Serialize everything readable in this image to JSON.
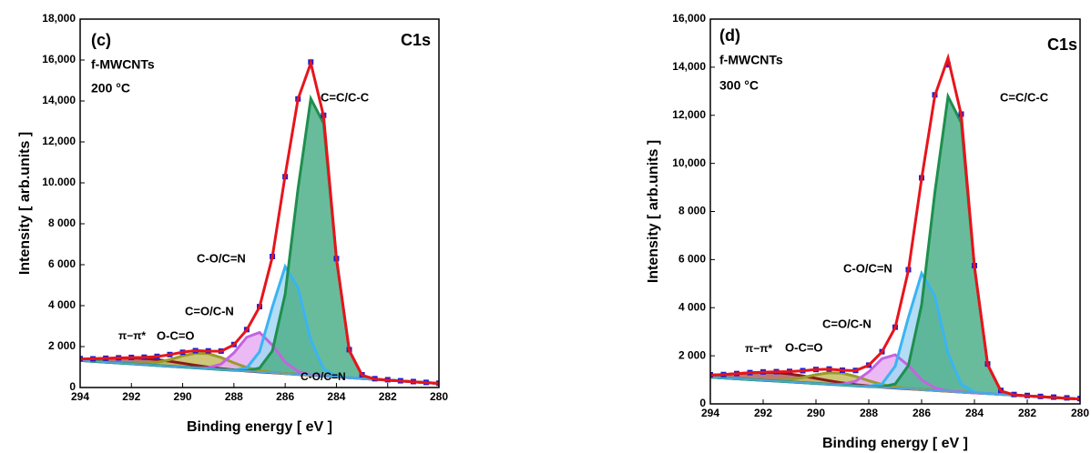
{
  "chart_data": [
    {
      "type": "line",
      "xlabel": "Binding energy [ eV ]",
      "ylabel": "Intensity [ arb.units ]",
      "xlim": [
        294,
        280
      ],
      "xticks": [
        294,
        292,
        290,
        288,
        286,
        284,
        282,
        280
      ],
      "ylim": [
        0,
        18000
      ],
      "yticks": [
        0,
        {
          "value": 2000,
          "label": "2 000"
        },
        {
          "value": 4000,
          "label": "4 000"
        },
        {
          "value": 6000,
          "label": "6 000"
        },
        {
          "value": 8000,
          "label": "8 000"
        },
        {
          "value": 10000,
          "label": "10.000"
        },
        {
          "value": 12000,
          "label": "12,000"
        },
        {
          "value": 14000,
          "label": "14,000"
        },
        {
          "value": 16000,
          "label": "16,000"
        },
        {
          "value": 18000,
          "label": "18,000"
        }
      ],
      "x": [
        294,
        293.5,
        293,
        292.5,
        292,
        291.5,
        291,
        290.5,
        290,
        289.5,
        289,
        288.5,
        288,
        287.5,
        287,
        286.5,
        286,
        285.5,
        285,
        284.5,
        284,
        283.5,
        283,
        282.5,
        282,
        281.5,
        281,
        280.5,
        280
      ],
      "series": [
        {
          "name": "C=C/C-C",
          "color": "#1e8f4e",
          "fill": "#4fb08a",
          "values": [
            1320,
            1280,
            1240,
            1200,
            1160,
            1120,
            1080,
            1040,
            1000,
            960,
            920,
            880,
            840,
            820,
            950,
            1790,
            4570,
            9700,
            14110,
            12910,
            6280,
            1810,
            595,
            410,
            360,
            320,
            280,
            240,
            200
          ]
        },
        {
          "name": "C-O/C=N",
          "color": "#3ab4f2",
          "fill": "#a6d6f4",
          "values": [
            1320,
            1280,
            1240,
            1200,
            1160,
            1120,
            1080,
            1040,
            1000,
            960,
            920,
            880,
            852,
            951,
            1747,
            3935,
            5907,
            4885,
            2320,
            908,
            556,
            481,
            440,
            400,
            360,
            320,
            280,
            240,
            200
          ]
        },
        {
          "name": "C=O/C-N",
          "color": "#c463e2",
          "fill": "#e7aef2",
          "values": [
            1320,
            1280,
            1240,
            1200,
            1160,
            1120,
            1080,
            1040,
            1000,
            965,
            969,
            1144,
            1693,
            2457,
            2690,
            2071,
            1248,
            783,
            621,
            560,
            520,
            480,
            440,
            400,
            360,
            320,
            280,
            240,
            200
          ]
        },
        {
          "name": "O-C=O",
          "color": "#9a9a2c",
          "fill": "#c4bd62",
          "values": [
            1320,
            1280,
            1240,
            1203,
            1175,
            1173,
            1228,
            1362,
            1545,
            1677,
            1655,
            1467,
            1205,
            977,
            827,
            740,
            684,
            640,
            600,
            560,
            520,
            480,
            440,
            400,
            360,
            320,
            280,
            240,
            200
          ]
        },
        {
          "name": "π−π*",
          "color": "#8b1a1a",
          "fill": "#b06060",
          "values": [
            1395,
            1403,
            1422,
            1440,
            1444,
            1420,
            1364,
            1280,
            1182,
            1083,
            995,
            921,
            860,
            808,
            763,
            720,
            680,
            640,
            600,
            560,
            520,
            480,
            440,
            400,
            360,
            320,
            280,
            240,
            200
          ]
        },
        {
          "name": "Background",
          "color": "#4da6e0",
          "values": [
            1320,
            1280,
            1240,
            1200,
            1160,
            1120,
            1080,
            1040,
            1000,
            960,
            920,
            880,
            840,
            800,
            760,
            720,
            680,
            640,
            600,
            560,
            520,
            480,
            440,
            400,
            360,
            320,
            280,
            240,
            200
          ]
        },
        {
          "name": "Experimental",
          "color": "#1f1fd0",
          "style": "markers",
          "values": [
            1410,
            1400,
            1430,
            1450,
            1470,
            1480,
            1520,
            1610,
            1720,
            1800,
            1790,
            1780,
            2100,
            2830,
            3950,
            6400,
            10300,
            14100,
            15900,
            13300,
            6300,
            1850,
            620,
            430,
            380,
            330,
            290,
            250,
            210
          ]
        },
        {
          "name": "Envelope",
          "color": "#e8141c",
          "values": [
            1395,
            1403,
            1422,
            1443,
            1459,
            1473,
            1512,
            1602,
            1727,
            1805,
            1779,
            1772,
            2090,
            2813,
            3937,
            6376,
            10369,
            14088,
            15851,
            13258,
            6316,
            1811,
            595,
            410,
            360,
            320,
            280,
            240,
            200
          ]
        }
      ],
      "annotations": [
        {
          "text": "(c)",
          "color": "#000000"
        },
        {
          "text": "f-MWCNTs",
          "color": "#000000"
        },
        {
          "text": "200 °C",
          "color": "#000000"
        },
        {
          "text": "C1s",
          "color": "#000000"
        },
        {
          "text": "C=C/C-C",
          "color": "#1e9a5a"
        },
        {
          "text": "C-O/C=N",
          "color": "#1fb8d8"
        },
        {
          "text": "C=O/C-N",
          "color": "#c463e2"
        },
        {
          "text": "O-C=O",
          "color": "#e0a020"
        },
        {
          "text": "π−π*",
          "color": "#8b1a1a"
        },
        {
          "text": "C-O/C=N",
          "color": "#1fb8d8"
        }
      ]
    },
    {
      "type": "line",
      "xlabel": "Binding energy [ eV ]",
      "ylabel": "Intensity [ arb.units ]",
      "xlim": [
        294,
        280
      ],
      "xticks": [
        294,
        292,
        290,
        288,
        286,
        284,
        282,
        280
      ],
      "ylim": [
        0,
        16000
      ],
      "yticks": [
        0,
        {
          "value": 2000,
          "label": "2 000"
        },
        {
          "value": 4000,
          "label": "4 000"
        },
        {
          "value": 6000,
          "label": "6 000"
        },
        {
          "value": 8000,
          "label": "8 000"
        },
        {
          "value": 10000,
          "label": "10,000"
        },
        {
          "value": 12000,
          "label": "12,000"
        },
        {
          "value": 14000,
          "label": "14,000"
        },
        {
          "value": 16000,
          "label": "16,000"
        }
      ],
      "x": [
        294,
        293.5,
        293,
        292.5,
        292,
        291.5,
        291,
        290.5,
        290,
        289.5,
        289,
        288.5,
        288,
        287.5,
        287,
        286.5,
        286,
        285.5,
        285,
        284.5,
        284,
        283.5,
        283,
        282.5,
        282,
        281.5,
        281,
        280.5,
        280
      ],
      "series": [
        {
          "name": "C=C/C-C",
          "color": "#1e8f4e",
          "fill": "#4fb08a",
          "values": [
            1110,
            1078,
            1045,
            1013,
            980,
            948,
            915,
            883,
            850,
            818,
            785,
            753,
            720,
            706,
            827,
            1594,
            4119,
            8777,
            12780,
            11696,
            5685,
            1634,
            536,
            372,
            330,
            298,
            265,
            233,
            200
          ]
        },
        {
          "name": "C-O/C=N",
          "color": "#3ab4f2",
          "fill": "#a6d6f4",
          "values": [
            1110,
            1078,
            1045,
            1013,
            980,
            948,
            915,
            883,
            850,
            818,
            785,
            753,
            731,
            828,
            1568,
            3597,
            5425,
            4485,
            2116,
            815,
            493,
            429,
            395,
            363,
            330,
            298,
            265,
            233,
            200
          ]
        },
        {
          "name": "C=O/C-N",
          "color": "#c463e2",
          "fill": "#e7aef2",
          "values": [
            1110,
            1078,
            1045,
            1013,
            980,
            948,
            915,
            883,
            850,
            822,
            820,
            943,
            1332,
            1878,
            2041,
            1593,
            998,
            661,
            540,
            493,
            460,
            428,
            395,
            363,
            330,
            298,
            265,
            233,
            200
          ]
        },
        {
          "name": "O-C=O",
          "color": "#9a9a2c",
          "fill": "#c4bd62",
          "values": [
            1110,
            1078,
            1045,
            1015,
            990,
            983,
            1014,
            1098,
            1214,
            1296,
            1275,
            1145,
            963,
            806,
            700,
            636,
            593,
            558,
            525,
            493,
            460,
            428,
            395,
            363,
            330,
            298,
            265,
            233,
            200
          ]
        },
        {
          "name": "π−π*",
          "color": "#8b1a1a",
          "fill": "#b06060",
          "values": [
            1198,
            1222,
            1257,
            1293,
            1311,
            1298,
            1246,
            1163,
            1062,
            962,
            873,
            801,
            743,
            697,
            659,
            623,
            590,
            558,
            525,
            493,
            460,
            428,
            395,
            363,
            330,
            298,
            265,
            233,
            200
          ]
        },
        {
          "name": "Background",
          "color": "#4da6e0",
          "values": [
            1110,
            1078,
            1045,
            1013,
            980,
            948,
            915,
            883,
            850,
            818,
            785,
            753,
            720,
            688,
            655,
            623,
            590,
            558,
            525,
            493,
            460,
            428,
            395,
            363,
            330,
            298,
            265,
            233,
            200
          ]
        },
        {
          "name": "Experimental",
          "color": "#1f1fd0",
          "style": "markers",
          "values": [
            1210,
            1220,
            1260,
            1300,
            1330,
            1340,
            1350,
            1380,
            1430,
            1450,
            1400,
            1390,
            1610,
            2170,
            3190,
            5580,
            9400,
            12850,
            14100,
            12050,
            5750,
            1660,
            560,
            390,
            350,
            310,
            280,
            250,
            220
          ]
        },
        {
          "name": "Envelope",
          "color": "#e8141c",
          "values": [
            1198,
            1222,
            1257,
            1295,
            1321,
            1333,
            1345,
            1378,
            1426,
            1444,
            1398,
            1383,
            1609,
            2163,
            3175,
            5551,
            9365,
            12807,
            14386,
            12018,
            5718,
            1635,
            536,
            372,
            330,
            298,
            265,
            233,
            200
          ]
        }
      ],
      "annotations": [
        {
          "text": "(d)",
          "color": "#000000"
        },
        {
          "text": "f-MWCNTs",
          "color": "#000000"
        },
        {
          "text": "300 °C",
          "color": "#000000"
        },
        {
          "text": "C1s",
          "color": "#000000"
        },
        {
          "text": "C=C/C-C",
          "color": "#1e9a5a"
        },
        {
          "text": "C-O/C=N",
          "color": "#1fb8d8"
        },
        {
          "text": "C=O/C-N",
          "color": "#c463e2"
        },
        {
          "text": "O-C=O",
          "color": "#e0a020"
        },
        {
          "text": "π−π*",
          "color": "#8b1a1a"
        }
      ]
    }
  ]
}
